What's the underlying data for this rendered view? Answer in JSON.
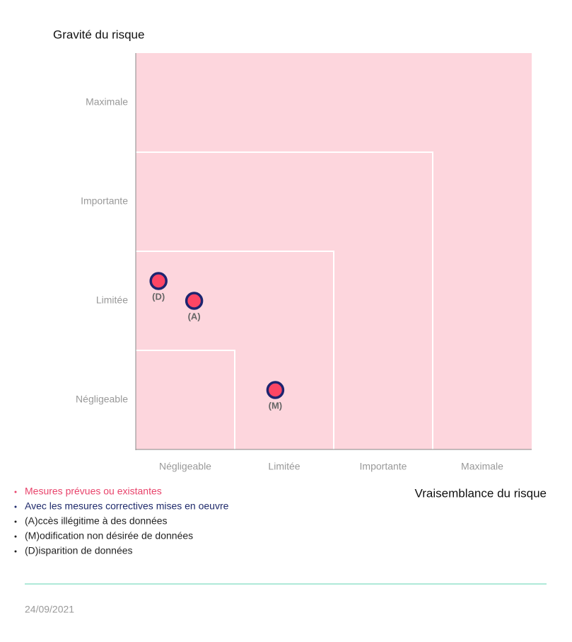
{
  "chart_data": {
    "type": "scatter",
    "y_axis_title": "Gravité du risque",
    "x_axis_title": "Vraisemblance du risque",
    "xlim": [
      0,
      4
    ],
    "ylim": [
      0,
      4
    ],
    "xticks": [
      {
        "value": 0.5,
        "label": "Négligeable"
      },
      {
        "value": 1.5,
        "label": "Limitée"
      },
      {
        "value": 2.5,
        "label": "Importante"
      },
      {
        "value": 3.5,
        "label": "Maximale"
      }
    ],
    "yticks": [
      {
        "value": 0.5,
        "label": "Négligeable"
      },
      {
        "value": 1.5,
        "label": "Limitée"
      },
      {
        "value": 2.5,
        "label": "Importante"
      },
      {
        "value": 3.5,
        "label": "Maximale"
      }
    ],
    "point_color": "#fd4664",
    "point_stroke": "#1d2570",
    "points": [
      {
        "label": "(D)",
        "x": 0.23,
        "y": 1.7
      },
      {
        "label": "(A)",
        "x": 0.59,
        "y": 1.5
      },
      {
        "label": "(M)",
        "x": 1.41,
        "y": 0.6
      }
    ]
  },
  "legend": [
    {
      "text": "Mesures prévues ou existantes",
      "color": "#e8436b"
    },
    {
      "text": "Avec les mesures correctives mises en oeuvre",
      "color": "#1f2a6b"
    },
    {
      "text": "(A)ccès illégitime à des données",
      "color": "#222222"
    },
    {
      "text": "(M)odification non désirée de données",
      "color": "#222222"
    },
    {
      "text": "(D)isparition de données",
      "color": "#222222"
    }
  ],
  "date": "24/09/2021"
}
